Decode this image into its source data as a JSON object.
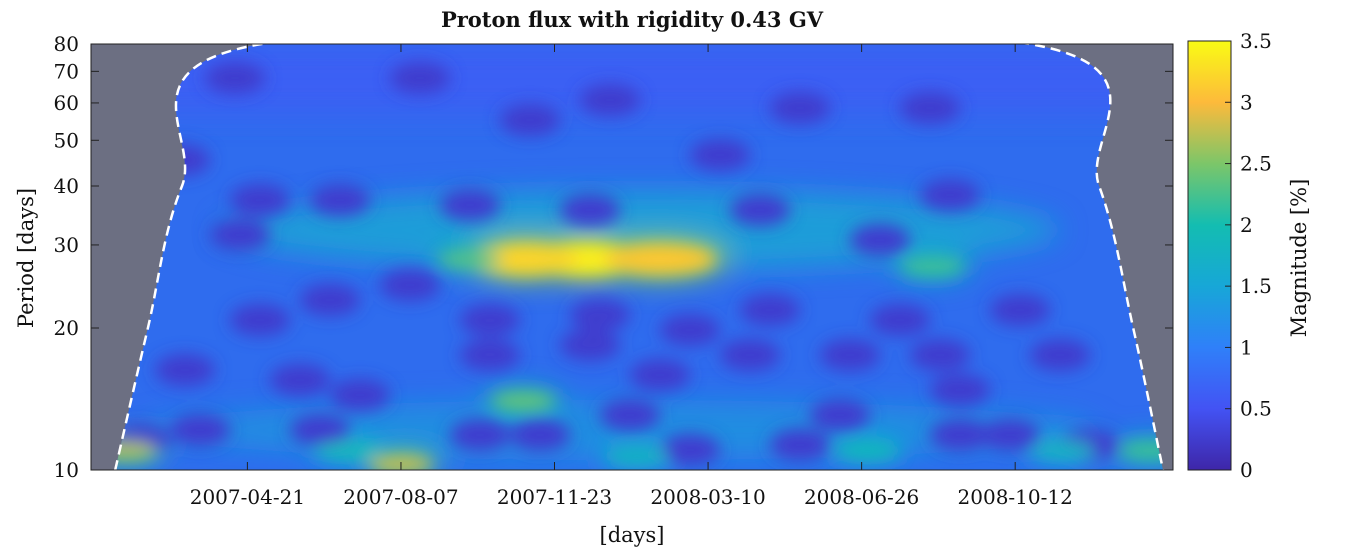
{
  "chart_data": {
    "type": "heatmap",
    "title": "Proton flux with rigidity 0.43 GV",
    "xlabel": "[days]",
    "ylabel": "Period [days]",
    "x_range": [
      "2007-01-01",
      "2009-01-31"
    ],
    "x_ticks": [
      "2007-04-21",
      "2007-08-07",
      "2007-11-23",
      "2008-03-10",
      "2008-06-26",
      "2008-10-12"
    ],
    "y_scale": "log",
    "y_range": [
      10,
      80
    ],
    "y_ticks": [
      10,
      20,
      30,
      40,
      50,
      60,
      70,
      80
    ],
    "colorbar": {
      "label": "Magnitude [%]",
      "range": [
        0,
        3.5
      ],
      "ticks": [
        "0",
        "0.5",
        "1",
        "1.5",
        "2",
        "2.5",
        "3",
        "3.5"
      ],
      "colormap": "parula"
    },
    "cone_of_influence": {
      "style": "white dashed",
      "shaded_outside": true,
      "points": [
        {
          "date": "2007-01-18",
          "period": 10
        },
        {
          "date": "2007-02-10",
          "period": 20
        },
        {
          "date": "2007-03-06",
          "period": 40
        },
        {
          "date": "2007-05-01",
          "period": 80
        },
        {
          "date": "2008-10-22",
          "period": 80
        },
        {
          "date": "2008-12-10",
          "period": 40
        },
        {
          "date": "2009-01-03",
          "period": 20
        },
        {
          "date": "2009-01-24",
          "period": 10
        }
      ]
    },
    "features": [
      {
        "date": "2007-12-15",
        "period": 28,
        "magnitude": 3.4
      },
      {
        "date": "2007-11-01",
        "period": 28,
        "magnitude": 3.2
      },
      {
        "date": "2008-02-05",
        "period": 28,
        "magnitude": 3.1
      },
      {
        "date": "2007-09-25",
        "period": 28,
        "magnitude": 2.3
      },
      {
        "date": "2008-08-15",
        "period": 27,
        "magnitude": 2.2
      },
      {
        "date": "2007-11-01",
        "period": 14,
        "magnitude": 2.4
      },
      {
        "date": "2007-08-07",
        "period": 10.3,
        "magnitude": 2.8
      },
      {
        "date": "2007-01-25",
        "period": 11,
        "magnitude": 2.7
      },
      {
        "date": "2009-01-15",
        "period": 11,
        "magnitude": 2.2
      },
      {
        "date": "2008-06-30",
        "period": 11,
        "magnitude": 1.9
      },
      {
        "date": "2008-01-20",
        "period": 10.7,
        "magnitude": 1.8
      },
      {
        "date": "2007-07-01",
        "period": 11,
        "magnitude": 1.9
      },
      {
        "date": "2008-11-15",
        "period": 11,
        "magnitude": 1.8
      }
    ]
  }
}
